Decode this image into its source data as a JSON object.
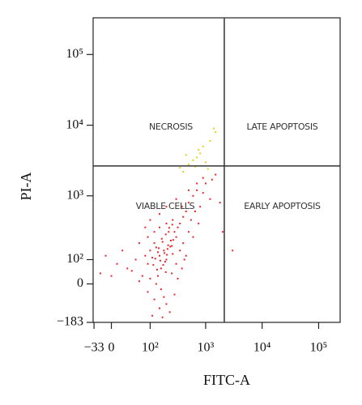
{
  "chart_data": {
    "type": "scatter",
    "x_label": "FITC-A",
    "y_label": "PI-A",
    "xscale": "asinh",
    "yscale": "asinh",
    "xlim": [
      -35,
      240000
    ],
    "ylim": [
      -183,
      330000
    ],
    "xticks": [
      {
        "value": -33,
        "label": "−33"
      },
      0,
      {
        "value": 100,
        "label": "10²"
      },
      {
        "value": 1000,
        "label": "10³"
      },
      {
        "value": 10000,
        "label": "10⁴"
      },
      {
        "value": 100000,
        "label": "10⁵"
      }
    ],
    "yticks": [
      {
        "value": -183,
        "label": "−183"
      },
      0,
      {
        "value": 100,
        "label": "10²"
      },
      {
        "value": 1000,
        "label": "10³"
      },
      {
        "value": 10000,
        "label": "10⁴"
      },
      {
        "value": 100000,
        "label": "10⁵"
      }
    ],
    "gate_x": 2140,
    "gate_y": 2650,
    "quadrant_labels": [
      "NECROSIS",
      "LATE APOPTOSIS",
      "VIABLE CELLS",
      "EARLY APOPTOSIS"
    ],
    "series": [
      {
        "color": "#e8262c",
        "x": [
          150,
          180,
          200,
          120,
          250,
          300,
          90,
          160,
          220,
          140,
          110,
          190,
          260,
          170,
          130,
          210,
          240,
          100,
          80,
          280,
          350,
          400,
          320,
          450,
          500,
          600,
          700,
          380,
          260,
          200,
          150,
          120,
          90,
          60,
          50,
          40,
          70,
          100,
          130,
          160,
          180,
          200,
          150,
          120,
          90,
          60,
          30,
          20,
          10,
          0,
          -10,
          -20,
          250,
          300,
          350,
          400,
          420,
          500,
          550,
          650,
          800,
          900,
          1000,
          1200,
          750,
          600,
          450,
          380,
          320,
          280,
          230,
          170,
          110,
          140,
          175,
          205,
          235,
          265,
          155,
          185,
          215,
          125,
          145,
          165,
          195,
          225,
          255,
          115,
          135,
          195,
          1500,
          1300,
          900,
          700,
          500,
          300,
          200,
          150,
          100,
          80,
          2000,
          3000,
          1800
        ],
        "y": [
          120,
          150,
          100,
          200,
          180,
          250,
          80,
          60,
          300,
          140,
          110,
          90,
          130,
          210,
          170,
          160,
          220,
          150,
          120,
          300,
          400,
          500,
          350,
          600,
          800,
          1000,
          1200,
          700,
          450,
          400,
          350,
          300,
          250,
          200,
          100,
          50,
          30,
          20,
          0,
          -20,
          -50,
          -80,
          -100,
          -60,
          -30,
          10,
          60,
          150,
          80,
          30,
          120,
          40,
          40,
          80,
          150,
          200,
          100,
          300,
          450,
          600,
          700,
          1100,
          1500,
          900,
          400,
          250,
          120,
          60,
          20,
          -40,
          -120,
          -150,
          -140,
          30,
          75,
          125,
          175,
          225,
          95,
          135,
          185,
          105,
          165,
          235,
          275,
          345,
          385,
          75,
          55,
          45,
          2000,
          1700,
          1800,
          1500,
          1200,
          900,
          700,
          550,
          450,
          350,
          300,
          150,
          800
        ]
      },
      {
        "color": "#e6cf1a",
        "x": [
          400,
          500,
          600,
          700,
          800,
          900,
          1000,
          1200,
          1500,
          350,
          450,
          650,
          750,
          1100,
          1400
        ],
        "y": [
          2200,
          2800,
          3200,
          3500,
          4000,
          5000,
          3000,
          6000,
          8000,
          2500,
          3800,
          2600,
          4500,
          2400,
          9000
        ]
      }
    ]
  }
}
